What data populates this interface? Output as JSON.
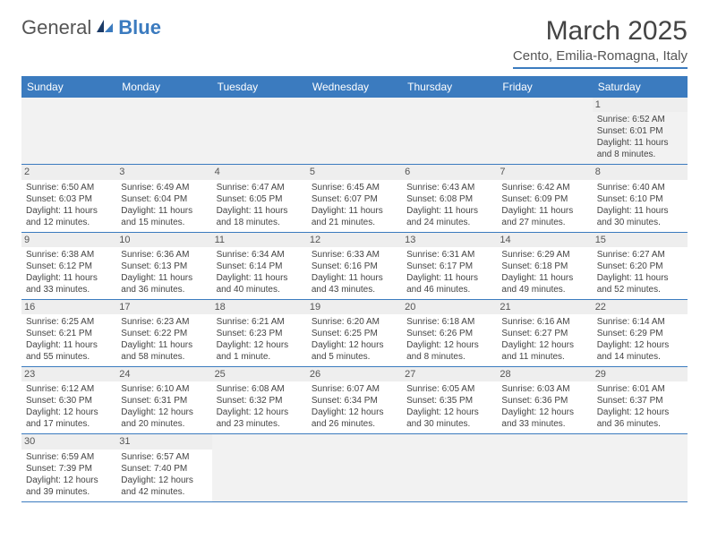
{
  "logo": {
    "text1": "General",
    "text2": "Blue"
  },
  "title": "March 2025",
  "location": "Cento, Emilia-Romagna, Italy",
  "colors": {
    "accent": "#3b7bbf",
    "header_bg": "#3b7bbf",
    "grid_line": "#3b7bbf",
    "alt_row": "#f2f2f2",
    "daynum_bg": "#eeeeee",
    "text": "#444"
  },
  "weekdays": [
    "Sunday",
    "Monday",
    "Tuesday",
    "Wednesday",
    "Thursday",
    "Friday",
    "Saturday"
  ],
  "weeks": [
    [
      null,
      null,
      null,
      null,
      null,
      null,
      {
        "d": "1",
        "sr": "Sunrise: 6:52 AM",
        "ss": "Sunset: 6:01 PM",
        "dl1": "Daylight: 11 hours",
        "dl2": "and 8 minutes."
      }
    ],
    [
      {
        "d": "2",
        "sr": "Sunrise: 6:50 AM",
        "ss": "Sunset: 6:03 PM",
        "dl1": "Daylight: 11 hours",
        "dl2": "and 12 minutes."
      },
      {
        "d": "3",
        "sr": "Sunrise: 6:49 AM",
        "ss": "Sunset: 6:04 PM",
        "dl1": "Daylight: 11 hours",
        "dl2": "and 15 minutes."
      },
      {
        "d": "4",
        "sr": "Sunrise: 6:47 AM",
        "ss": "Sunset: 6:05 PM",
        "dl1": "Daylight: 11 hours",
        "dl2": "and 18 minutes."
      },
      {
        "d": "5",
        "sr": "Sunrise: 6:45 AM",
        "ss": "Sunset: 6:07 PM",
        "dl1": "Daylight: 11 hours",
        "dl2": "and 21 minutes."
      },
      {
        "d": "6",
        "sr": "Sunrise: 6:43 AM",
        "ss": "Sunset: 6:08 PM",
        "dl1": "Daylight: 11 hours",
        "dl2": "and 24 minutes."
      },
      {
        "d": "7",
        "sr": "Sunrise: 6:42 AM",
        "ss": "Sunset: 6:09 PM",
        "dl1": "Daylight: 11 hours",
        "dl2": "and 27 minutes."
      },
      {
        "d": "8",
        "sr": "Sunrise: 6:40 AM",
        "ss": "Sunset: 6:10 PM",
        "dl1": "Daylight: 11 hours",
        "dl2": "and 30 minutes."
      }
    ],
    [
      {
        "d": "9",
        "sr": "Sunrise: 6:38 AM",
        "ss": "Sunset: 6:12 PM",
        "dl1": "Daylight: 11 hours",
        "dl2": "and 33 minutes."
      },
      {
        "d": "10",
        "sr": "Sunrise: 6:36 AM",
        "ss": "Sunset: 6:13 PM",
        "dl1": "Daylight: 11 hours",
        "dl2": "and 36 minutes."
      },
      {
        "d": "11",
        "sr": "Sunrise: 6:34 AM",
        "ss": "Sunset: 6:14 PM",
        "dl1": "Daylight: 11 hours",
        "dl2": "and 40 minutes."
      },
      {
        "d": "12",
        "sr": "Sunrise: 6:33 AM",
        "ss": "Sunset: 6:16 PM",
        "dl1": "Daylight: 11 hours",
        "dl2": "and 43 minutes."
      },
      {
        "d": "13",
        "sr": "Sunrise: 6:31 AM",
        "ss": "Sunset: 6:17 PM",
        "dl1": "Daylight: 11 hours",
        "dl2": "and 46 minutes."
      },
      {
        "d": "14",
        "sr": "Sunrise: 6:29 AM",
        "ss": "Sunset: 6:18 PM",
        "dl1": "Daylight: 11 hours",
        "dl2": "and 49 minutes."
      },
      {
        "d": "15",
        "sr": "Sunrise: 6:27 AM",
        "ss": "Sunset: 6:20 PM",
        "dl1": "Daylight: 11 hours",
        "dl2": "and 52 minutes."
      }
    ],
    [
      {
        "d": "16",
        "sr": "Sunrise: 6:25 AM",
        "ss": "Sunset: 6:21 PM",
        "dl1": "Daylight: 11 hours",
        "dl2": "and 55 minutes."
      },
      {
        "d": "17",
        "sr": "Sunrise: 6:23 AM",
        "ss": "Sunset: 6:22 PM",
        "dl1": "Daylight: 11 hours",
        "dl2": "and 58 minutes."
      },
      {
        "d": "18",
        "sr": "Sunrise: 6:21 AM",
        "ss": "Sunset: 6:23 PM",
        "dl1": "Daylight: 12 hours",
        "dl2": "and 1 minute."
      },
      {
        "d": "19",
        "sr": "Sunrise: 6:20 AM",
        "ss": "Sunset: 6:25 PM",
        "dl1": "Daylight: 12 hours",
        "dl2": "and 5 minutes."
      },
      {
        "d": "20",
        "sr": "Sunrise: 6:18 AM",
        "ss": "Sunset: 6:26 PM",
        "dl1": "Daylight: 12 hours",
        "dl2": "and 8 minutes."
      },
      {
        "d": "21",
        "sr": "Sunrise: 6:16 AM",
        "ss": "Sunset: 6:27 PM",
        "dl1": "Daylight: 12 hours",
        "dl2": "and 11 minutes."
      },
      {
        "d": "22",
        "sr": "Sunrise: 6:14 AM",
        "ss": "Sunset: 6:29 PM",
        "dl1": "Daylight: 12 hours",
        "dl2": "and 14 minutes."
      }
    ],
    [
      {
        "d": "23",
        "sr": "Sunrise: 6:12 AM",
        "ss": "Sunset: 6:30 PM",
        "dl1": "Daylight: 12 hours",
        "dl2": "and 17 minutes."
      },
      {
        "d": "24",
        "sr": "Sunrise: 6:10 AM",
        "ss": "Sunset: 6:31 PM",
        "dl1": "Daylight: 12 hours",
        "dl2": "and 20 minutes."
      },
      {
        "d": "25",
        "sr": "Sunrise: 6:08 AM",
        "ss": "Sunset: 6:32 PM",
        "dl1": "Daylight: 12 hours",
        "dl2": "and 23 minutes."
      },
      {
        "d": "26",
        "sr": "Sunrise: 6:07 AM",
        "ss": "Sunset: 6:34 PM",
        "dl1": "Daylight: 12 hours",
        "dl2": "and 26 minutes."
      },
      {
        "d": "27",
        "sr": "Sunrise: 6:05 AM",
        "ss": "Sunset: 6:35 PM",
        "dl1": "Daylight: 12 hours",
        "dl2": "and 30 minutes."
      },
      {
        "d": "28",
        "sr": "Sunrise: 6:03 AM",
        "ss": "Sunset: 6:36 PM",
        "dl1": "Daylight: 12 hours",
        "dl2": "and 33 minutes."
      },
      {
        "d": "29",
        "sr": "Sunrise: 6:01 AM",
        "ss": "Sunset: 6:37 PM",
        "dl1": "Daylight: 12 hours",
        "dl2": "and 36 minutes."
      }
    ],
    [
      {
        "d": "30",
        "sr": "Sunrise: 6:59 AM",
        "ss": "Sunset: 7:39 PM",
        "dl1": "Daylight: 12 hours",
        "dl2": "and 39 minutes."
      },
      {
        "d": "31",
        "sr": "Sunrise: 6:57 AM",
        "ss": "Sunset: 7:40 PM",
        "dl1": "Daylight: 12 hours",
        "dl2": "and 42 minutes."
      },
      null,
      null,
      null,
      null,
      null
    ]
  ]
}
